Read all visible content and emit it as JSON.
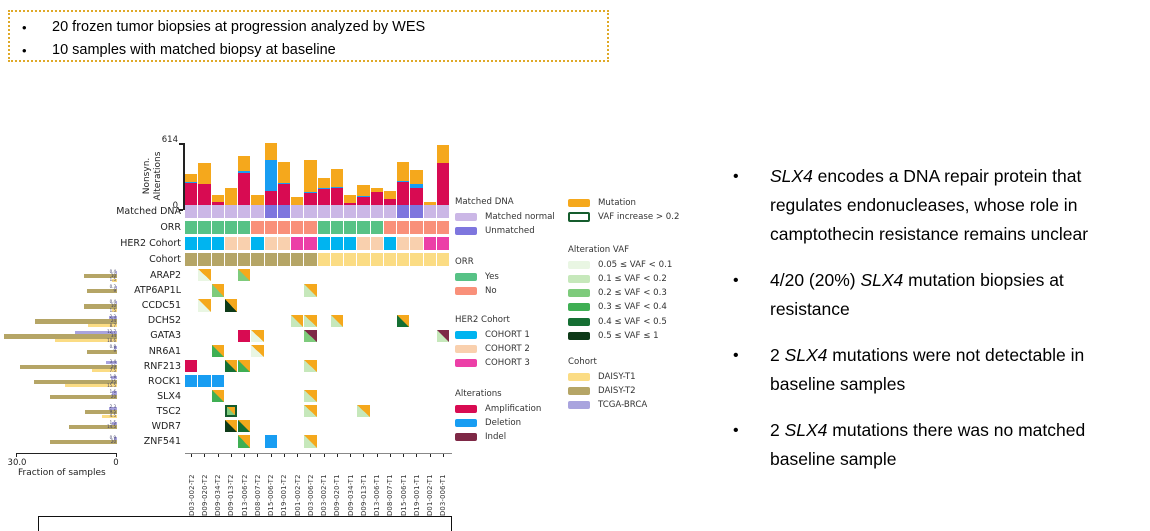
{
  "top_box": {
    "bullets": [
      "20 frozen tumor biopsies at progression analyzed by WES",
      "10 samples with matched biopsy at baseline"
    ]
  },
  "right_panel": {
    "bullets": [
      {
        "segments": [
          {
            "t": "SLX4",
            "i": true
          },
          {
            "t": " encodes a DNA repair protein that regulates endonucleases, whose role in camptothecin resistance remains unclear",
            "i": false
          }
        ]
      },
      {
        "segments": [
          {
            "t": "4/20 (20%) ",
            "i": false
          },
          {
            "t": "SLX4",
            "i": true
          },
          {
            "t": " mutation biopsies at resistance",
            "i": false
          }
        ]
      },
      {
        "segments": [
          {
            "t": "2 ",
            "i": false
          },
          {
            "t": "SLX4",
            "i": true
          },
          {
            "t": " mutations were not detectable in baseline samples",
            "i": false
          }
        ]
      },
      {
        "segments": [
          {
            "t": "2 ",
            "i": false
          },
          {
            "t": "SLX4",
            "i": true
          },
          {
            "t": " mutations there was no matched baseline sample",
            "i": false
          }
        ]
      }
    ]
  },
  "chart_data": {
    "type": "oncoprint",
    "samples": [
      "D03-002-T2",
      "D09-020-T2",
      "D09-034-T2",
      "D09-013-T2",
      "D13-006-T2",
      "D08-007-T2",
      "D15-006-T2",
      "D19-001-T2",
      "D01-002-T2",
      "D03-006-T2",
      "D03-002-T1",
      "D09-020-T1",
      "D09-034-T1",
      "D09-013-T1",
      "D13-006-T1",
      "D08-007-T1",
      "D15-006-T1",
      "D19-001-T1",
      "D01-002-T1",
      "D03-006-T1"
    ],
    "top_bar_chart": {
      "type": "bar",
      "stacked": true,
      "ylabel_line1": "Nonsyn.",
      "ylabel_line2": "Alterations",
      "ymax_label": "614",
      "ymin_label": "0",
      "ylim": [
        0,
        614
      ],
      "series": [
        {
          "name": "Amplification",
          "color_key": "amplification",
          "values": [
            245,
            240,
            75,
            25,
            340,
            50,
            170,
            240,
            40,
            155,
            190,
            205,
            60,
            120,
            165,
            100,
            255,
            205,
            15,
            435
          ]
        },
        {
          "name": "Deletion",
          "color_key": "deletion",
          "values": [
            8,
            0,
            0,
            0,
            15,
            0,
            290,
            10,
            0,
            10,
            8,
            5,
            0,
            5,
            0,
            0,
            10,
            35,
            0,
            0
          ]
        },
        {
          "name": "Mutation",
          "color_key": "mutation",
          "values": [
            78,
            190,
            60,
            180,
            140,
            85,
            154,
            190,
            80,
            295,
            100,
            170,
            80,
            100,
            40,
            70,
            175,
            130,
            60,
            160
          ]
        }
      ]
    },
    "annotation_rows": [
      {
        "label": "Matched DNA",
        "key": "matched_dna",
        "values": [
          "M",
          "M",
          "M",
          "M",
          "M",
          "M",
          "U",
          "U",
          "M",
          "M",
          "M",
          "M",
          "M",
          "M",
          "M",
          "M",
          "U",
          "U",
          "M",
          "M"
        ],
        "legend_map": {
          "M": "Matched normal",
          "U": "Unmatched"
        }
      },
      {
        "label": "ORR",
        "key": "orr",
        "values": [
          "Y",
          "Y",
          "Y",
          "Y",
          "Y",
          "N",
          "N",
          "N",
          "N",
          "N",
          "Y",
          "Y",
          "Y",
          "Y",
          "Y",
          "N",
          "N",
          "N",
          "N",
          "N"
        ],
        "legend_map": {
          "Y": "Yes",
          "N": "No"
        }
      },
      {
        "label": "HER2 Cohort",
        "key": "her2",
        "values": [
          "1",
          "1",
          "1",
          "2",
          "2",
          "1",
          "2",
          "2",
          "3",
          "3",
          "1",
          "1",
          "1",
          "2",
          "2",
          "1",
          "2",
          "2",
          "3",
          "3"
        ],
        "legend_map": {
          "1": "COHORT 1",
          "2": "COHORT 2",
          "3": "COHORT 3"
        }
      },
      {
        "label": "Cohort",
        "key": "cohort",
        "values": [
          "T2",
          "T2",
          "T2",
          "T2",
          "T2",
          "T2",
          "T2",
          "T2",
          "T2",
          "T2",
          "T1",
          "T1",
          "T1",
          "T1",
          "T1",
          "T1",
          "T1",
          "T1",
          "T1",
          "T1"
        ],
        "legend_map": {
          "T2": "DAISY-T2",
          "T1": "DAISY-T1"
        }
      }
    ],
    "genes": [
      {
        "name": "ARAP2",
        "fractions": {
          "tcga_brca": 0.4,
          "daisy_t2": 10,
          "daisy_t1": 1.5
        },
        "tiny_labels": [
          "0.4",
          "10",
          "1.5"
        ],
        "cells": [
          {
            "col": 2,
            "alt": "mutation",
            "vaf_bin": 1
          },
          {
            "col": 5,
            "alt": "mutation",
            "vaf_bin": 3
          }
        ]
      },
      {
        "name": "ATP6AP1L",
        "fractions": {
          "tcga_brca": 0.3,
          "daisy_t2": 9,
          "daisy_t1": 0
        },
        "tiny_labels": [
          "0.3",
          "9",
          ""
        ],
        "cells": [
          {
            "col": 3,
            "alt": "mutation",
            "vaf_bin": 3
          },
          {
            "col": 10,
            "alt": "mutation",
            "vaf_bin": 2
          }
        ]
      },
      {
        "name": "CCDC51",
        "fractions": {
          "tcga_brca": 0.4,
          "daisy_t2": 10,
          "daisy_t1": 1.5
        },
        "tiny_labels": [
          "0.4",
          "10",
          "1.5"
        ],
        "cells": [
          {
            "col": 2,
            "alt": "mutation",
            "vaf_bin": 1
          },
          {
            "col": 4,
            "alt": "mutation",
            "vaf_bin": 6
          }
        ]
      },
      {
        "name": "DCHS2",
        "fractions": {
          "tcga_brca": 2.3,
          "daisy_t2": 24.5,
          "daisy_t1": 8.7
        },
        "tiny_labels": [
          "2.3",
          "24",
          "8.7"
        ],
        "cells": [
          {
            "col": 9,
            "alt": "mutation",
            "vaf_bin": 2
          },
          {
            "col": 10,
            "alt": "mutation",
            "vaf_bin": 2
          },
          {
            "col": 12,
            "alt": "mutation",
            "vaf_bin": 2
          },
          {
            "col": 17,
            "alt": "mutation",
            "vaf_bin": 5
          }
        ]
      },
      {
        "name": "GATA3",
        "fractions": {
          "tcga_brca": 12.7,
          "daisy_t2": 34,
          "daisy_t1": 18.6
        },
        "tiny_labels": [
          "12.7",
          "34",
          "18.6"
        ],
        "cells": [
          {
            "col": 5,
            "alt": "amplification"
          },
          {
            "col": 6,
            "alt": "mutation",
            "vaf_bin": 1
          },
          {
            "col": 10,
            "alt": "indel",
            "vaf_bin": 3
          },
          {
            "col": 20,
            "alt": "indel",
            "vaf_bin": 2
          }
        ]
      },
      {
        "name": "NR6A1",
        "fractions": {
          "tcga_brca": 0.8,
          "daisy_t2": 9,
          "daisy_t1": 0
        },
        "tiny_labels": [
          "0.8",
          "9",
          ""
        ],
        "cells": [
          {
            "col": 3,
            "alt": "mutation",
            "vaf_bin": 4
          },
          {
            "col": 6,
            "alt": "mutation",
            "vaf_bin": 1
          }
        ]
      },
      {
        "name": "RNF213",
        "fractions": {
          "tcga_brca": 3.4,
          "daisy_t2": 29,
          "daisy_t1": 7.5
        },
        "tiny_labels": [
          "3.4",
          "29",
          "7.5"
        ],
        "cells": [
          {
            "col": 1,
            "alt": "amplification"
          },
          {
            "col": 4,
            "alt": "mutation",
            "vaf_bin": 5
          },
          {
            "col": 5,
            "alt": "mutation",
            "vaf_bin": 4
          },
          {
            "col": 10,
            "alt": "mutation",
            "vaf_bin": 2
          }
        ]
      },
      {
        "name": "ROCK1",
        "fractions": {
          "tcga_brca": 1.8,
          "daisy_t2": 25,
          "daisy_t1": 15.5
        },
        "tiny_labels": [
          "1.8",
          "25",
          "15.5"
        ],
        "cells": [
          {
            "col": 1,
            "alt": "deletion"
          },
          {
            "col": 2,
            "alt": "deletion"
          },
          {
            "col": 3,
            "alt": "deletion"
          }
        ]
      },
      {
        "name": "SLX4",
        "fractions": {
          "tcga_brca": 1.6,
          "daisy_t2": 20,
          "daisy_t1": 0
        },
        "tiny_labels": [
          "1.6",
          "20",
          ""
        ],
        "highlighted": true,
        "cells": [
          {
            "col": 3,
            "alt": "mutation",
            "vaf_bin": 4
          },
          {
            "col": 10,
            "alt": "mutation",
            "vaf_bin": 2
          }
        ]
      },
      {
        "name": "TSC2",
        "fractions": {
          "tcga_brca": 2.3,
          "daisy_t2": 9.5,
          "daisy_t1": 4.5
        },
        "tiny_labels": [
          "2.3",
          "9.5",
          "4.5"
        ],
        "cells": [
          {
            "col": 4,
            "alt": "mutation",
            "vaf_bin": 3,
            "vaf_increase": true
          },
          {
            "col": 10,
            "alt": "mutation",
            "vaf_bin": 2
          },
          {
            "col": 14,
            "alt": "mutation",
            "vaf_bin": 2
          }
        ]
      },
      {
        "name": "WDR7",
        "fractions": {
          "tcga_brca": 1.5,
          "daisy_t2": 14.5,
          "daisy_t1": 0
        },
        "tiny_labels": [
          "1.5",
          "14.5",
          ""
        ],
        "cells": [
          {
            "col": 4,
            "alt": "mutation",
            "vaf_bin": 6
          },
          {
            "col": 5,
            "alt": "mutation",
            "vaf_bin": 5
          }
        ]
      },
      {
        "name": "ZNF541",
        "fractions": {
          "tcga_brca": 0.9,
          "daisy_t2": 20,
          "daisy_t1": 0
        },
        "tiny_labels": [
          "0.9",
          "20",
          ""
        ],
        "cells": [
          {
            "col": 5,
            "alt": "mutation",
            "vaf_bin": 4
          },
          {
            "col": 7,
            "alt": "deletion"
          },
          {
            "col": 10,
            "alt": "mutation",
            "vaf_bin": 2
          }
        ]
      }
    ],
    "fraction_chart": {
      "type": "bar",
      "orientation": "horizontal",
      "title": "Fraction of samples",
      "max_label": "30.0",
      "zero_label": "0",
      "xlim": [
        30,
        0
      ],
      "series_order": [
        "TCGA-BRCA",
        "DAISY-T2",
        "DAISY-T1"
      ]
    },
    "legend": {
      "col1": [
        {
          "title": "Matched DNA",
          "items": [
            {
              "label": "Matched normal",
              "color": "#cbb7e6"
            },
            {
              "label": "Unmatched",
              "color": "#7e76de"
            }
          ]
        },
        {
          "title": "ORR",
          "items": [
            {
              "label": "Yes",
              "color": "#57c286"
            },
            {
              "label": "No",
              "color": "#f9907a"
            }
          ]
        },
        {
          "title": "HER2 Cohort",
          "items": [
            {
              "label": "COHORT 1",
              "color": "#00b4f0"
            },
            {
              "label": "COHORT 2",
              "color": "#f9d0ae"
            },
            {
              "label": "COHORT 3",
              "color": "#ec3fa7"
            }
          ]
        },
        {
          "title": "Alterations",
          "items": [
            {
              "label": "Amplification",
              "color": "#d80b52"
            },
            {
              "label": "Deletion",
              "color": "#189df2"
            },
            {
              "label": "Indel",
              "color": "#7e2846"
            }
          ]
        }
      ],
      "col2": [
        {
          "title": "",
          "items": [
            {
              "label": "Mutation",
              "color": "#f5a81c"
            },
            {
              "label": "VAF increase > 0.2",
              "color": "#ffffff",
              "outline": "#155c2d"
            }
          ]
        },
        {
          "title": "Alteration VAF",
          "items": [
            {
              "label": "0.05 ≤ VAF < 0.1",
              "color": "#e9f6e3"
            },
            {
              "label": "0.1 ≤ VAF < 0.2",
              "color": "#c6e8bb"
            },
            {
              "label": "0.2 ≤ VAF < 0.3",
              "color": "#7ecb7c"
            },
            {
              "label": "0.3 ≤ VAF < 0.4",
              "color": "#3faf54"
            },
            {
              "label": "0.4 ≤ VAF < 0.5",
              "color": "#156f33"
            },
            {
              "label": "0.5 ≤ VAF ≤ 1",
              "color": "#0e3a18"
            }
          ]
        },
        {
          "title": "Cohort",
          "items": [
            {
              "label": "DAISY-T1",
              "color": "#fbdc84"
            },
            {
              "label": "DAISY-T2",
              "color": "#b5a566"
            },
            {
              "label": "TCGA-BRCA",
              "color": "#a9a4de"
            }
          ]
        }
      ]
    },
    "colors": {
      "amplification": "#d80b52",
      "deletion": "#189df2",
      "mutation": "#f5a81c",
      "indel": "#7e2846",
      "matched_normal": "#cbb7e6",
      "unmatched": "#7e76de",
      "orr_yes": "#57c286",
      "orr_no": "#f9907a",
      "her2_cohort1": "#00b4f0",
      "her2_cohort2": "#f9d0ae",
      "her2_cohort3": "#ec3fa7",
      "daisy_t1": "#fbdc84",
      "daisy_t2": "#b5a566",
      "tcga_brca": "#a9a4de",
      "vaf_bins": [
        "#e9f6e3",
        "#c6e8bb",
        "#7ecb7c",
        "#3faf54",
        "#156f33",
        "#0e3a18"
      ],
      "vaf_increase_outline": "#155c2d",
      "highlight_border": "#111111",
      "top_box_border": "#dfa928"
    },
    "highlight": {
      "gene": "SLX4"
    }
  }
}
